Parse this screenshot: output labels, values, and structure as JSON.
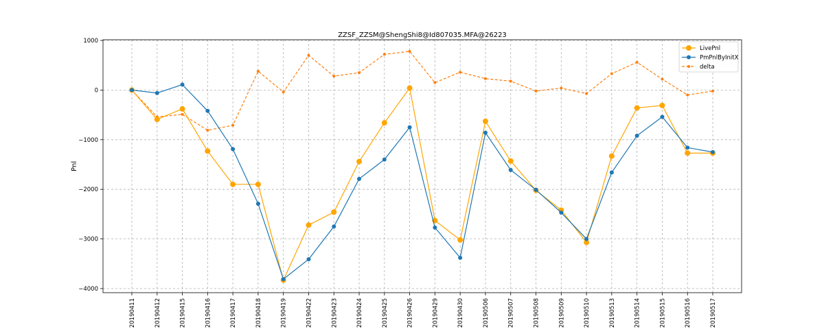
{
  "chart_data": {
    "type": "line",
    "title": "ZZSF_ZZSM@ShengShi8@Id807035.MFA@26223",
    "xlabel": "",
    "ylabel": "Pnl",
    "ylim": [
      -4100,
      1000
    ],
    "yticks": [
      1000,
      0,
      -1000,
      -2000,
      -3000,
      -4000
    ],
    "ytick_labels": [
      "1000",
      "0",
      "−1000",
      "−2000",
      "−3000",
      "−4000"
    ],
    "grid": true,
    "legend_position": "top-right",
    "categories": [
      "20190411",
      "20190412",
      "20190415",
      "20190416",
      "20190417",
      "20190418",
      "20190419",
      "20190422",
      "20190423",
      "20190424",
      "20190425",
      "20190426",
      "20190429",
      "20190430",
      "20190506",
      "20190507",
      "20190508",
      "20190509",
      "20190510",
      "20190513",
      "20190514",
      "20190515",
      "20190516",
      "20190517"
    ],
    "series": [
      {
        "name": "LivePnl",
        "color": "#ffa500",
        "style": "solid",
        "marker": "large-circle",
        "values": [
          0,
          -590,
          -380,
          -1230,
          -1900,
          -1900,
          -3830,
          -2720,
          -2460,
          -1440,
          -660,
          40,
          -2630,
          -3020,
          -630,
          -1430,
          -2020,
          -2420,
          -3070,
          -1330,
          -360,
          -310,
          -1270,
          -1270
        ]
      },
      {
        "name": "PmPnlByInitX",
        "color": "#1f77b4",
        "style": "solid",
        "marker": "circle",
        "values": [
          0,
          -60,
          110,
          -420,
          -1190,
          -2290,
          -3810,
          -3410,
          -2750,
          -1790,
          -1400,
          -750,
          -2770,
          -3380,
          -860,
          -1610,
          -2010,
          -2470,
          -3000,
          -1660,
          -920,
          -540,
          -1160,
          -1250
        ]
      },
      {
        "name": "delta",
        "color": "#ff7f0e",
        "style": "dashed",
        "marker": "small-circle",
        "values": [
          0,
          -540,
          -490,
          -810,
          -710,
          380,
          -40,
          700,
          280,
          350,
          720,
          780,
          150,
          360,
          230,
          180,
          -20,
          40,
          -70,
          330,
          560,
          220,
          -100,
          -20
        ]
      }
    ]
  }
}
